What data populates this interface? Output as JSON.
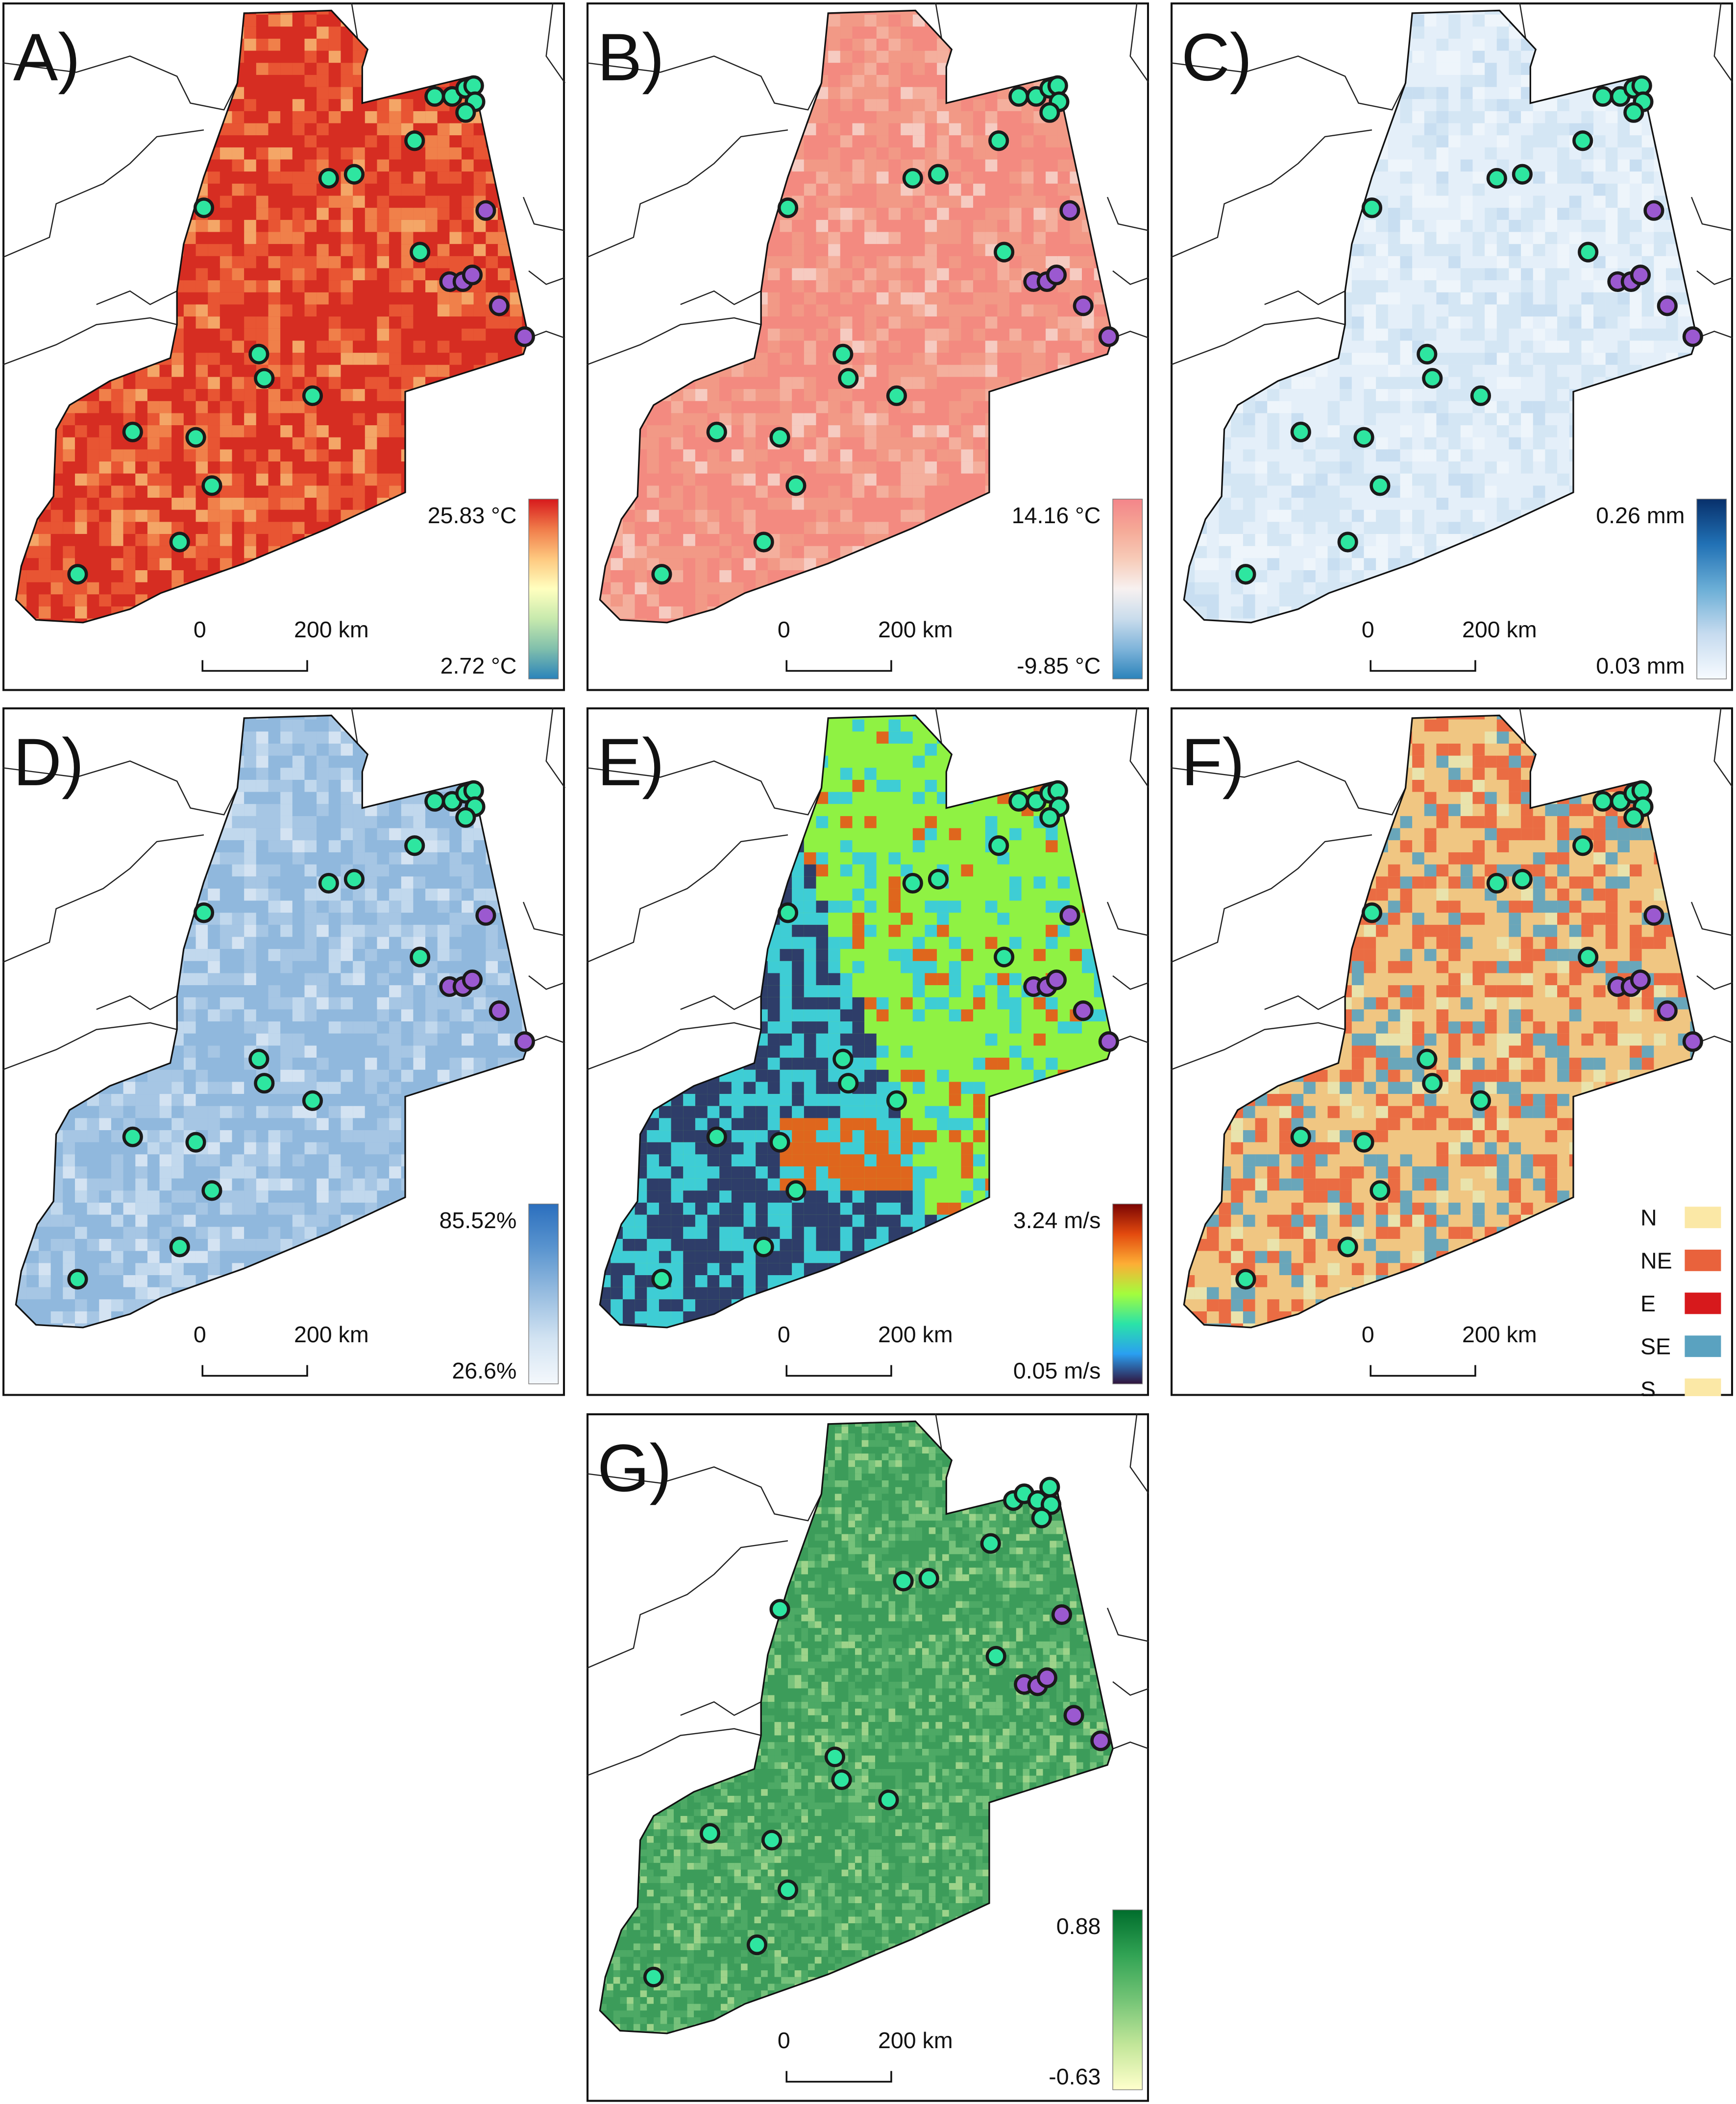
{
  "panels": [
    {
      "letter": "A)",
      "legend_type": "gradient",
      "max_label": "25.83 °C",
      "min_label": "2.72 °C",
      "ramp": [
        "#d7191c",
        "#f07c4a",
        "#fec980",
        "#ffffbf",
        "#c7e9ad",
        "#80bfac",
        "#2b83ba"
      ],
      "fill_colors": [
        "#d62e22",
        "#ea5a35",
        "#f3894f",
        "#f7b46f"
      ],
      "scale_left": "0",
      "scale_right": "200 km",
      "points": "standard"
    },
    {
      "letter": "B)",
      "legend_type": "gradient",
      "max_label": "14.16 °C",
      "min_label": "-9.85 °C",
      "ramp": [
        "#f4858a",
        "#f5a896",
        "#f7cbb8",
        "#f7f1f0",
        "#c9dcec",
        "#7fb4da",
        "#2b83ba"
      ],
      "fill_colors": [
        "#f38a80",
        "#f29a86",
        "#f4b3a0",
        "#f6d2c8"
      ],
      "scale_left": "0",
      "scale_right": "200 km",
      "points": "standard"
    },
    {
      "letter": "C)",
      "legend_type": "gradient",
      "max_label": "0.26 mm",
      "min_label": "0.03 mm",
      "ramp": [
        "#08306b",
        "#2171b5",
        "#6baed6",
        "#c6dbef",
        "#f7fbff"
      ],
      "fill_colors": [
        "#e3eef8",
        "#d2e4f3",
        "#eef5fb",
        "#c4dbef"
      ],
      "scale_left": "0",
      "scale_right": "200 km",
      "points": "standard"
    },
    {
      "letter": "D)",
      "legend_type": "gradient",
      "max_label": "85.52%",
      "min_label": "26.6%",
      "ramp": [
        "#2b6fbe",
        "#5b95cf",
        "#98bde0",
        "#d2e3f2",
        "#f4f8fc"
      ],
      "fill_colors": [
        "#90b8dd",
        "#a8c8e4",
        "#c6dbee",
        "#dbe8f4"
      ],
      "scale_left": "0",
      "scale_right": "200 km",
      "points": "standard"
    },
    {
      "letter": "E)",
      "legend_type": "gradient",
      "max_label": "3.24 m/s",
      "min_label": "0.05 m/s",
      "ramp": [
        "#7a0403",
        "#e34a0e",
        "#fdae35",
        "#a3fd3d",
        "#2ae3a8",
        "#2a9ff1",
        "#30123b"
      ],
      "fill_colors": [
        "#8ff244",
        "#35c9e6",
        "#24296e",
        "#e8561a"
      ],
      "scale_left": "0",
      "scale_right": "200 km",
      "points": "standard"
    },
    {
      "letter": "F)",
      "legend_type": "categorical",
      "categories": [
        {
          "label": "N",
          "color": "#fbe8a6"
        },
        {
          "label": "NE",
          "color": "#e9623c"
        },
        {
          "label": "E",
          "color": "#d7191c"
        },
        {
          "label": "SE",
          "color": "#5aa2c0"
        },
        {
          "label": "S",
          "color": "#fbe8a6"
        }
      ],
      "fill_colors": [
        "#f0c582",
        "#e9623c",
        "#5aa2c0",
        "#e8e6b0"
      ],
      "scale_left": "0",
      "scale_right": "200 km",
      "points": "standard"
    },
    {
      "letter": "G)",
      "legend_type": "gradient",
      "max_label": "0.88",
      "min_label": "-0.63",
      "ramp": [
        "#006d2c",
        "#31a354",
        "#74c476",
        "#c2e699",
        "#ffffcc"
      ],
      "fill_colors": [
        "#3c9c5a",
        "#4fab66",
        "#7cc77e",
        "#a7d98f"
      ],
      "scale_left": "0",
      "scale_right": "200 km",
      "points": "panelG"
    }
  ],
  "colors": {
    "marker_green": "#2ee6a0",
    "marker_purple": "#9b59d0",
    "marker_stroke": "#1a1a1a",
    "border": "#111111"
  }
}
